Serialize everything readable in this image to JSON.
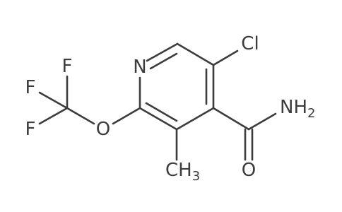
{
  "atoms": [
    {
      "label": "N"
    },
    {
      "label": "Cl"
    },
    {
      "label": "NH",
      "sub": "2"
    },
    {
      "label": "O"
    },
    {
      "label": "CH",
      "sub": "3"
    },
    {
      "label": "O"
    },
    {
      "label": "F"
    },
    {
      "label": "F"
    },
    {
      "label": "F"
    }
  ]
}
